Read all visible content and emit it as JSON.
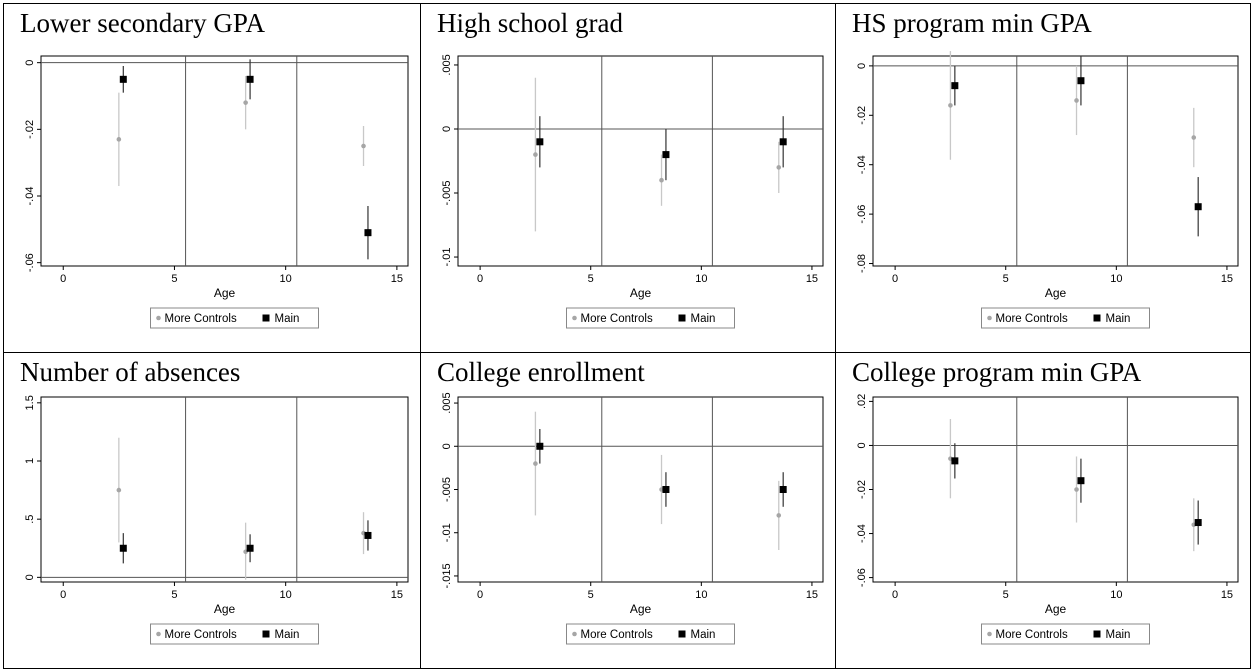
{
  "chart_data": [
    {
      "type": "scatter",
      "title": "Lower secondary GPA",
      "xlabel": "Age",
      "xlim": [
        -1,
        15.5
      ],
      "xticks": [
        0,
        5,
        10,
        15
      ],
      "ylim": [
        -0.061,
        0.002
      ],
      "yticks": [
        0,
        -0.02,
        -0.04,
        -0.06
      ],
      "ytick_labels": [
        "0",
        "-.02",
        "-.04",
        "-.06"
      ],
      "vlines": [
        5.5,
        10.5
      ],
      "hline": 0,
      "series": [
        {
          "name": "More Controls",
          "color": "#a6a6a6",
          "x": [
            2.5,
            8.2,
            13.5
          ],
          "y": [
            -0.023,
            -0.012,
            -0.025
          ],
          "lo": [
            -0.037,
            -0.02,
            -0.031
          ],
          "hi": [
            -0.009,
            -0.004,
            -0.019
          ]
        },
        {
          "name": "Main",
          "color": "#000000",
          "x": [
            2.7,
            8.4,
            13.7
          ],
          "y": [
            -0.005,
            -0.005,
            -0.051
          ],
          "lo": [
            -0.009,
            -0.011,
            -0.059
          ],
          "hi": [
            -0.001,
            0.001,
            -0.043
          ]
        }
      ],
      "legend": [
        "More Controls",
        "Main"
      ]
    },
    {
      "type": "scatter",
      "title": "High school grad",
      "xlabel": "Age",
      "xlim": [
        -1,
        15.5
      ],
      "xticks": [
        0,
        5,
        10,
        15
      ],
      "ylim": [
        -0.0107,
        0.0057
      ],
      "yticks": [
        0.005,
        0,
        -0.005,
        -0.01
      ],
      "ytick_labels": [
        ".005",
        "0",
        "-.005",
        "-.01"
      ],
      "vlines": [
        5.5,
        10.5
      ],
      "hline": 0,
      "series": [
        {
          "name": "More Controls",
          "color": "#a6a6a6",
          "x": [
            2.5,
            8.2,
            13.5
          ],
          "y": [
            -0.002,
            -0.004,
            -0.003
          ],
          "lo": [
            -0.008,
            -0.006,
            -0.005
          ],
          "hi": [
            0.004,
            -0.002,
            -0.001
          ]
        },
        {
          "name": "Main",
          "color": "#000000",
          "x": [
            2.7,
            8.4,
            13.7
          ],
          "y": [
            -0.001,
            -0.002,
            -0.001
          ],
          "lo": [
            -0.003,
            -0.004,
            -0.003
          ],
          "hi": [
            0.001,
            0.0,
            0.001
          ]
        }
      ],
      "legend": [
        "More Controls",
        "Main"
      ]
    },
    {
      "type": "scatter",
      "title": "HS program min GPA",
      "xlabel": "Age",
      "xlim": [
        -1,
        15.5
      ],
      "xticks": [
        0,
        5,
        10,
        15
      ],
      "ylim": [
        -0.081,
        0.004
      ],
      "yticks": [
        0,
        -0.02,
        -0.04,
        -0.06,
        -0.08
      ],
      "ytick_labels": [
        "0",
        "-.02",
        "-.04",
        "-.06",
        "-.08"
      ],
      "vlines": [
        5.5,
        10.5
      ],
      "hline": 0,
      "series": [
        {
          "name": "More Controls",
          "color": "#a6a6a6",
          "x": [
            2.5,
            8.2,
            13.5
          ],
          "y": [
            -0.016,
            -0.014,
            -0.029
          ],
          "lo": [
            -0.038,
            -0.028,
            -0.041
          ],
          "hi": [
            0.006,
            0.0,
            -0.017
          ]
        },
        {
          "name": "Main",
          "color": "#000000",
          "x": [
            2.7,
            8.4,
            13.7
          ],
          "y": [
            -0.008,
            -0.006,
            -0.057
          ],
          "lo": [
            -0.016,
            -0.016,
            -0.069
          ],
          "hi": [
            0.0,
            0.004,
            -0.045
          ]
        }
      ],
      "legend": [
        "More Controls",
        "Main"
      ]
    },
    {
      "type": "scatter",
      "title": "Number of absences",
      "xlabel": "Age",
      "xlim": [
        -1,
        15.5
      ],
      "xticks": [
        0,
        5,
        10,
        15
      ],
      "ylim": [
        -0.04,
        1.55
      ],
      "yticks": [
        0,
        0.5,
        1,
        1.5
      ],
      "ytick_labels": [
        "0",
        ".5",
        "1",
        "1.5"
      ],
      "vlines": [
        5.5,
        10.5
      ],
      "hline": 0,
      "series": [
        {
          "name": "More Controls",
          "color": "#a6a6a6",
          "x": [
            2.5,
            8.2,
            13.5
          ],
          "y": [
            0.75,
            0.22,
            0.38
          ],
          "lo": [
            0.3,
            -0.02,
            0.2
          ],
          "hi": [
            1.2,
            0.47,
            0.56
          ]
        },
        {
          "name": "Main",
          "color": "#000000",
          "x": [
            2.7,
            8.4,
            13.7
          ],
          "y": [
            0.25,
            0.25,
            0.36
          ],
          "lo": [
            0.12,
            0.13,
            0.23
          ],
          "hi": [
            0.38,
            0.37,
            0.49
          ]
        }
      ],
      "legend": [
        "More Controls",
        "Main"
      ]
    },
    {
      "type": "scatter",
      "title": "College enrollment",
      "xlabel": "Age",
      "xlim": [
        -1,
        15.5
      ],
      "xticks": [
        0,
        5,
        10,
        15
      ],
      "ylim": [
        -0.0157,
        0.0057
      ],
      "yticks": [
        0.005,
        0,
        -0.005,
        -0.01,
        -0.015
      ],
      "ytick_labels": [
        ".005",
        "0",
        "-.005",
        "-.01",
        "-.015"
      ],
      "vlines": [
        5.5,
        10.5
      ],
      "hline": 0,
      "series": [
        {
          "name": "More Controls",
          "color": "#a6a6a6",
          "x": [
            2.5,
            8.2,
            13.5
          ],
          "y": [
            -0.002,
            -0.005,
            -0.008
          ],
          "lo": [
            -0.008,
            -0.009,
            -0.012
          ],
          "hi": [
            0.004,
            -0.001,
            -0.004
          ]
        },
        {
          "name": "Main",
          "color": "#000000",
          "x": [
            2.7,
            8.4,
            13.7
          ],
          "y": [
            0.0,
            -0.005,
            -0.005
          ],
          "lo": [
            -0.002,
            -0.007,
            -0.007
          ],
          "hi": [
            0.002,
            -0.003,
            -0.003
          ]
        }
      ],
      "legend": [
        "More Controls",
        "Main"
      ]
    },
    {
      "type": "scatter",
      "title": "College program min GPA",
      "xlabel": "Age",
      "xlim": [
        -1,
        15.5
      ],
      "xticks": [
        0,
        5,
        10,
        15
      ],
      "ylim": [
        -0.062,
        0.022
      ],
      "yticks": [
        0.02,
        0,
        -0.02,
        -0.04,
        -0.06
      ],
      "ytick_labels": [
        ".02",
        "0",
        "-.02",
        "-.04",
        "-.06"
      ],
      "vlines": [
        5.5,
        10.5
      ],
      "hline": 0,
      "series": [
        {
          "name": "More Controls",
          "color": "#a6a6a6",
          "x": [
            2.5,
            8.2,
            13.5
          ],
          "y": [
            -0.006,
            -0.02,
            -0.036
          ],
          "lo": [
            -0.024,
            -0.035,
            -0.048
          ],
          "hi": [
            0.012,
            -0.005,
            -0.024
          ]
        },
        {
          "name": "Main",
          "color": "#000000",
          "x": [
            2.7,
            8.4,
            13.7
          ],
          "y": [
            -0.007,
            -0.016,
            -0.035
          ],
          "lo": [
            -0.015,
            -0.026,
            -0.045
          ],
          "hi": [
            0.001,
            -0.006,
            -0.025
          ]
        }
      ],
      "legend": [
        "More Controls",
        "Main"
      ]
    }
  ]
}
